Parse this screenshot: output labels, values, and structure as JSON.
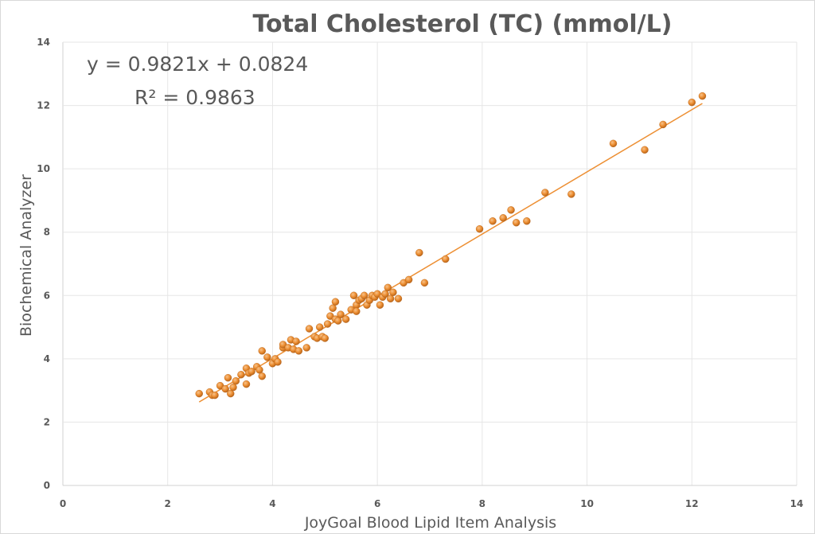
{
  "colors": {
    "marker": "#ed8f33",
    "marker_highlight": "#f6c28b",
    "marker_edge": "#b8641a",
    "trendline": "#ed8f33",
    "text": "#595959"
  },
  "chart_data": {
    "type": "scatter",
    "title": "Total Cholesterol (TC) (mmol/L)",
    "xlabel": "JoyGoal Blood Lipid Item Analysis",
    "ylabel": "Biochemical  Analyzer",
    "xlim": [
      0,
      14
    ],
    "ylim": [
      0,
      14
    ],
    "x_ticks": [
      "0",
      "2",
      "4",
      "6",
      "8",
      "10",
      "12",
      "14"
    ],
    "y_ticks": [
      "0",
      "2",
      "4",
      "6",
      "8",
      "10",
      "12",
      "14"
    ],
    "grid": true,
    "trendline": {
      "type": "linear",
      "slope": 0.9821,
      "intercept": 0.0824,
      "x_range": [
        2.6,
        12.2
      ],
      "equation_label": "y = 0.9821x + 0.0824",
      "r2_label": "R² = 0.9863"
    },
    "series": [
      {
        "points": [
          [
            2.6,
            2.9
          ],
          [
            2.8,
            2.95
          ],
          [
            2.85,
            2.85
          ],
          [
            2.9,
            2.85
          ],
          [
            3.0,
            3.15
          ],
          [
            3.1,
            3.05
          ],
          [
            3.15,
            3.4
          ],
          [
            3.2,
            2.9
          ],
          [
            3.25,
            3.1
          ],
          [
            3.3,
            3.3
          ],
          [
            3.4,
            3.5
          ],
          [
            3.5,
            3.7
          ],
          [
            3.5,
            3.2
          ],
          [
            3.55,
            3.55
          ],
          [
            3.6,
            3.6
          ],
          [
            3.7,
            3.75
          ],
          [
            3.75,
            3.65
          ],
          [
            3.8,
            4.25
          ],
          [
            3.8,
            3.45
          ],
          [
            3.9,
            4.05
          ],
          [
            4.0,
            3.85
          ],
          [
            4.05,
            4.0
          ],
          [
            4.1,
            3.9
          ],
          [
            4.2,
            4.35
          ],
          [
            4.2,
            4.45
          ],
          [
            4.3,
            4.35
          ],
          [
            4.35,
            4.6
          ],
          [
            4.4,
            4.3
          ],
          [
            4.45,
            4.55
          ],
          [
            4.5,
            4.25
          ],
          [
            4.65,
            4.35
          ],
          [
            4.7,
            4.95
          ],
          [
            4.8,
            4.7
          ],
          [
            4.85,
            4.65
          ],
          [
            4.9,
            5.0
          ],
          [
            4.95,
            4.7
          ],
          [
            5.0,
            4.65
          ],
          [
            5.05,
            5.1
          ],
          [
            5.1,
            5.35
          ],
          [
            5.15,
            5.6
          ],
          [
            5.2,
            5.25
          ],
          [
            5.2,
            5.8
          ],
          [
            5.25,
            5.2
          ],
          [
            5.3,
            5.4
          ],
          [
            5.4,
            5.25
          ],
          [
            5.5,
            5.55
          ],
          [
            5.55,
            6.0
          ],
          [
            5.6,
            5.7
          ],
          [
            5.6,
            5.5
          ],
          [
            5.65,
            5.85
          ],
          [
            5.7,
            5.9
          ],
          [
            5.75,
            6.0
          ],
          [
            5.8,
            5.7
          ],
          [
            5.85,
            5.85
          ],
          [
            5.9,
            6.0
          ],
          [
            5.95,
            5.95
          ],
          [
            6.0,
            6.05
          ],
          [
            6.05,
            5.7
          ],
          [
            6.1,
            5.95
          ],
          [
            6.15,
            6.05
          ],
          [
            6.2,
            6.25
          ],
          [
            6.25,
            5.9
          ],
          [
            6.3,
            6.1
          ],
          [
            6.4,
            5.9
          ],
          [
            6.5,
            6.4
          ],
          [
            6.6,
            6.5
          ],
          [
            6.8,
            7.35
          ],
          [
            6.9,
            6.4
          ],
          [
            7.3,
            7.15
          ],
          [
            7.95,
            8.1
          ],
          [
            8.2,
            8.35
          ],
          [
            8.4,
            8.45
          ],
          [
            8.55,
            8.7
          ],
          [
            8.65,
            8.3
          ],
          [
            8.85,
            8.35
          ],
          [
            9.2,
            9.25
          ],
          [
            9.7,
            9.2
          ],
          [
            10.5,
            10.8
          ],
          [
            11.1,
            10.6
          ],
          [
            11.45,
            11.4
          ],
          [
            12.0,
            12.1
          ],
          [
            12.2,
            12.3
          ]
        ]
      }
    ]
  }
}
